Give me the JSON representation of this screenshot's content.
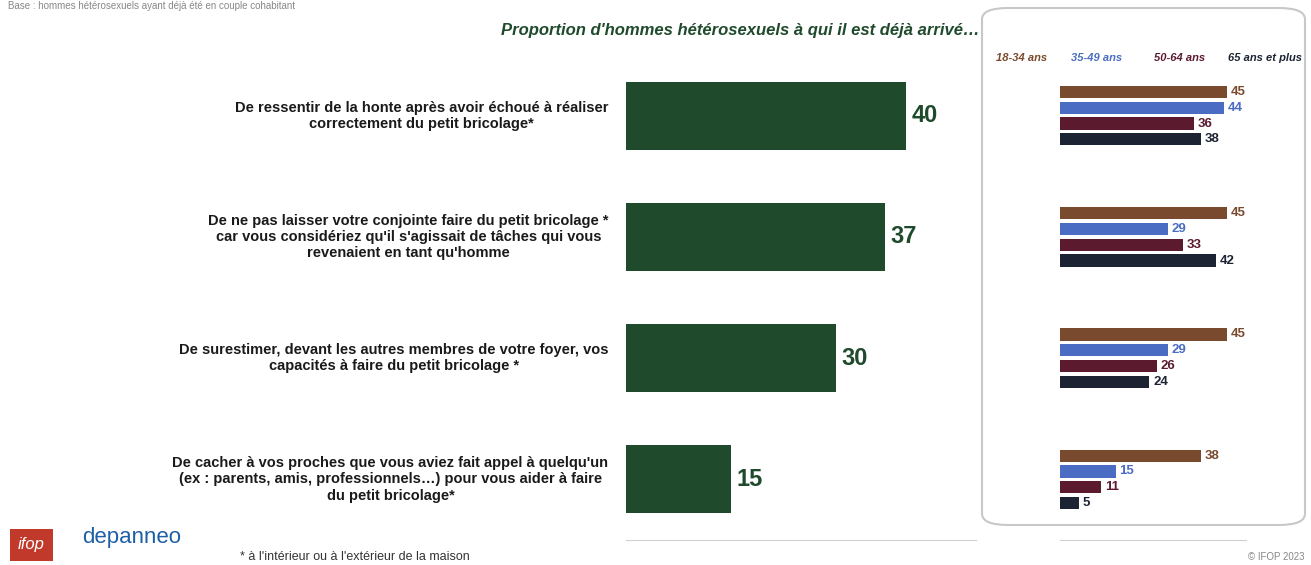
{
  "header": "Base : hommes hétérosexuels ayant déjà été en couple cohabitant",
  "chart_data": [
    {
      "type": "bar",
      "orientation": "horizontal",
      "title": "Proportion d'hommes hétérosexuels à qui il est déjà arrivé…",
      "categories": [
        "De ressentir de la honte après avoir échoué à réaliser correctement du petit bricolage*",
        "De ne pas laisser votre conjointe faire du petit bricolage * car vous considériez qu'il s'agissait de tâches qui vous revenaient en tant qu'homme",
        "De surestimer, devant les autres membres de votre foyer, vos capacités à faire du petit bricolage *",
        "De cacher à vos proches que vous aviez fait appel à quelqu'un (ex : parents, amis, professionnels…) pour vous aider à faire du petit bricolage*"
      ],
      "values": [
        40,
        37,
        30,
        15
      ],
      "color": "#1f4a2c",
      "xlim": [
        0,
        50
      ],
      "xticks": [],
      "data_labels": true,
      "tick_labels": false
    },
    {
      "type": "bar",
      "orientation": "horizontal",
      "categories": [
        null,
        null,
        null,
        null
      ],
      "series": [
        {
          "name": "18-34 ans",
          "color": "#7a4a2e",
          "values": [
            45,
            45,
            45,
            38
          ]
        },
        {
          "name": "35-49 ans",
          "color": "#4a6cc2",
          "values": [
            44,
            29,
            29,
            15
          ]
        },
        {
          "name": "50-64 ans",
          "color": "#5c1a2e",
          "values": [
            36,
            33,
            26,
            11
          ]
        },
        {
          "name": "65 ans et plus",
          "color": "#1c2433",
          "values": [
            38,
            42,
            24,
            5
          ]
        }
      ],
      "xlim": [
        0,
        50
      ],
      "xticks": [],
      "data_labels": true,
      "tick_labels": false
    }
  ],
  "footnote": "* à l'intérieur ou à l'extérieur de la maison",
  "logos": [
    "ifop",
    "depanneo"
  ],
  "copyright": "© IFOP 2023"
}
